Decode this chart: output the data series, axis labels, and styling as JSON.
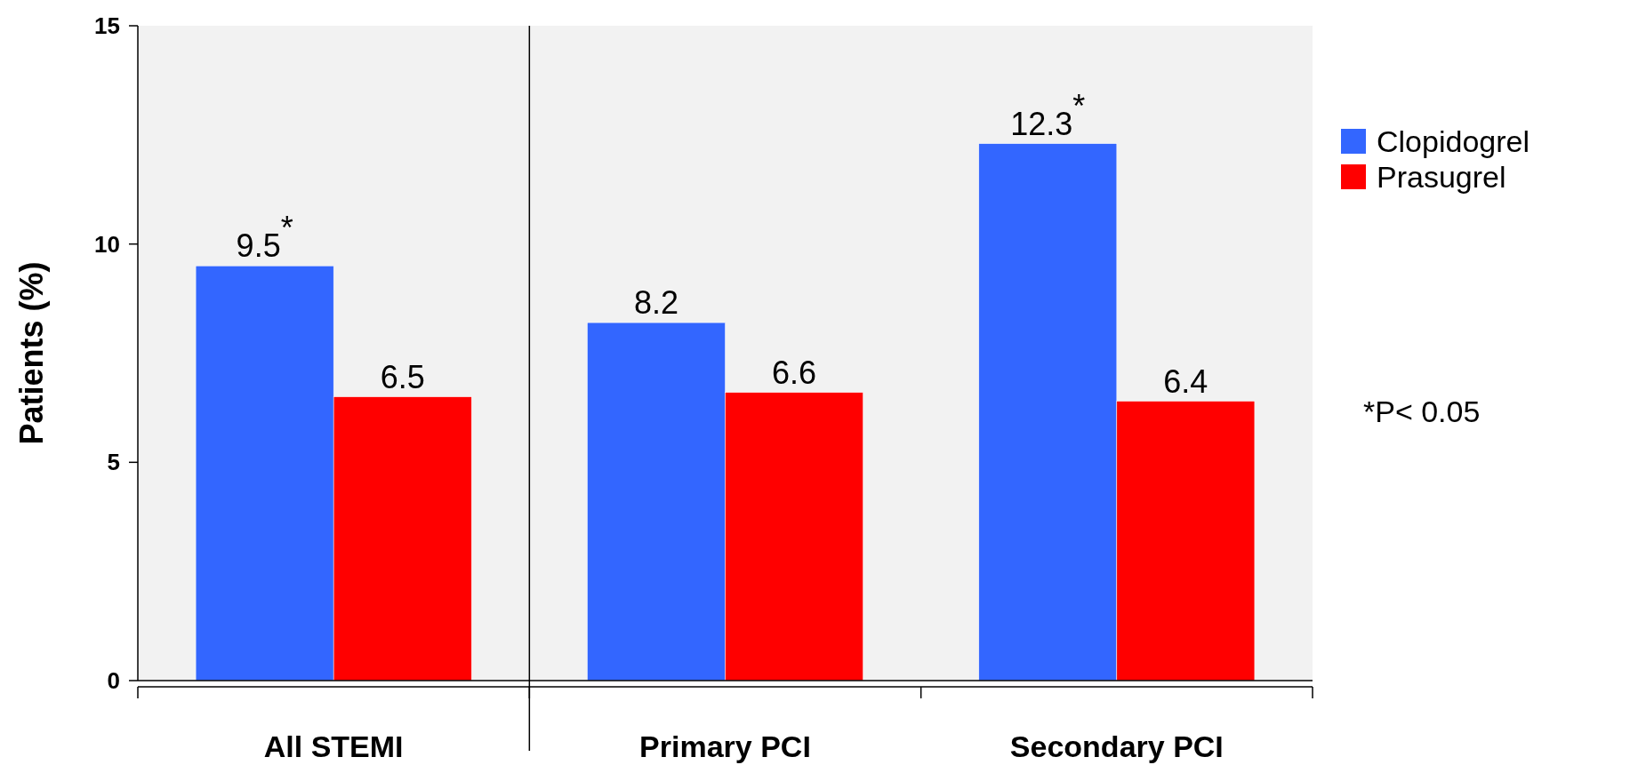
{
  "chart_data": {
    "type": "bar",
    "ylabel": "Patients (%)",
    "categories": [
      "All STEMI",
      "Primary PCI",
      "Secondary PCI"
    ],
    "series": [
      {
        "name": "Clopidogrel",
        "color": "#3366ff",
        "values": [
          9.5,
          8.2,
          12.3
        ],
        "value_labels": [
          "9.5$^{*}$",
          "8.2",
          "12.3$^{*}$"
        ]
      },
      {
        "name": "Prasugrel",
        "color": "#ff0000",
        "values": [
          6.5,
          6.6,
          6.4
        ],
        "value_labels": [
          "6.5",
          "6.6",
          "6.4"
        ]
      }
    ],
    "ylim": [
      0,
      15
    ],
    "yticks": [
      0,
      5,
      10,
      15
    ],
    "legend": "right",
    "annotations": [
      "*P< 0.05"
    ]
  }
}
